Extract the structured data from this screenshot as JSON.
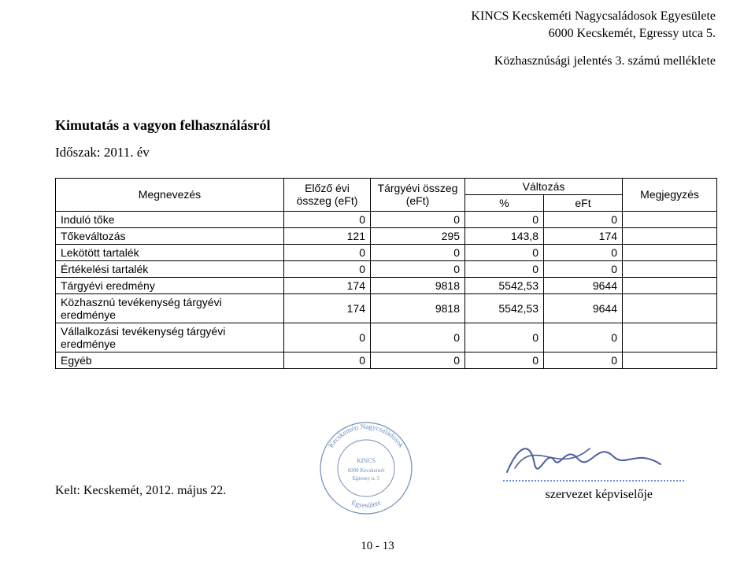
{
  "header": {
    "org_name": "KINCS Kecskeméti Nagycsaládosok Egyesülete",
    "address": "6000 Kecskemét, Egressy utca 5.",
    "attachment": "Közhasznúsági jelentés 3. számú melléklete"
  },
  "title": {
    "main": "Kimutatás a vagyon felhasználásról",
    "period": "Időszak: 2011. év"
  },
  "table": {
    "columns": {
      "name": "Megnevezés",
      "prev": "Előző évi összeg (eFt)",
      "curr": "Tárgyévi összeg (eFt)",
      "change": "Változás",
      "change_pct": "%",
      "change_eft": "eFt",
      "note": "Megjegyzés"
    },
    "rows": [
      {
        "label": "Induló tőke",
        "prev": "0",
        "curr": "0",
        "pct": "0",
        "eft": "0",
        "note": "",
        "indent": false
      },
      {
        "label": "Tőkeváltozás",
        "prev": "121",
        "curr": "295",
        "pct": "143,8",
        "eft": "174",
        "note": "",
        "indent": false
      },
      {
        "label": "Lekötött tartalék",
        "prev": "0",
        "curr": "0",
        "pct": "0",
        "eft": "0",
        "note": "",
        "indent": false
      },
      {
        "label": "Értékelési tartalék",
        "prev": "0",
        "curr": "0",
        "pct": "0",
        "eft": "0",
        "note": "",
        "indent": false
      },
      {
        "label": "Tárgyévi eredmény",
        "prev": "174",
        "curr": "9818",
        "pct": "5542,53",
        "eft": "9644",
        "note": "",
        "indent": false
      },
      {
        "label": "Közhasznú tevékenység tárgyévi eredménye",
        "prev": "174",
        "curr": "9818",
        "pct": "5542,53",
        "eft": "9644",
        "note": "",
        "indent": true
      },
      {
        "label": "Vállalkozási tevékenység tárgyévi eredménye",
        "prev": "0",
        "curr": "0",
        "pct": "0",
        "eft": "0",
        "note": "",
        "indent": true
      },
      {
        "label": "Egyéb",
        "prev": "0",
        "curr": "0",
        "pct": "0",
        "eft": "0",
        "note": "",
        "indent": true
      }
    ],
    "col_widths": {
      "name": 290,
      "prev": 110,
      "curr": 120,
      "pct": 100,
      "eft": 100,
      "note": 120
    },
    "border_color": "#000000",
    "font_size": 14
  },
  "signature": {
    "kelt": "Kelt: Kecskemét, 2012. május 22.",
    "role": "szervezet képviselője",
    "dot_color": "#6a8bd4",
    "stamp_color": "#6f8fb8",
    "scribble_color": "#4a5fa0"
  },
  "footer": {
    "page": "10 - 13"
  }
}
